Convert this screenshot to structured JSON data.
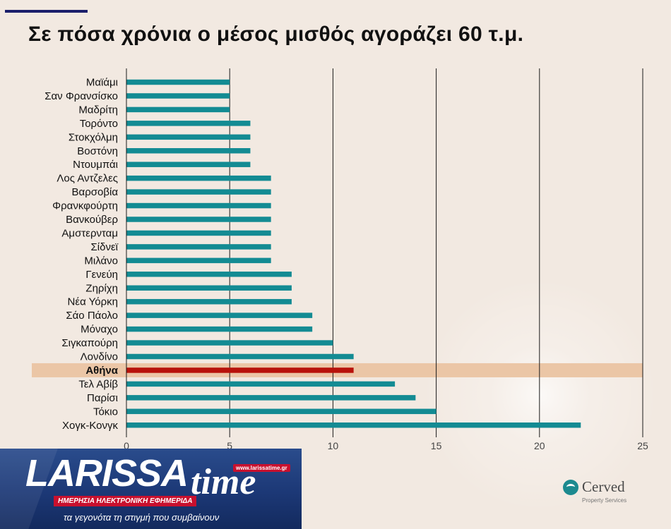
{
  "title": "Σε πόσα χρόνια ο μέσος μισθός αγοράζει 60 τ.μ.",
  "chart_data": {
    "type": "bar",
    "orientation": "horizontal",
    "title": "Σε πόσα χρόνια ο μέσος μισθός αγοράζει 60 τ.μ.",
    "categories": [
      "Μαϊάμι",
      "Σαν Φρανσίσκο",
      "Μαδρίτη",
      "Τορόντο",
      "Στοκχόλμη",
      "Βοστόνη",
      "Ντουμπάι",
      "Λος Αντζελες",
      "Βαρσοβία",
      "Φρανκφούρτη",
      "Βανκούβερ",
      "Αμστερνταμ",
      "Σίδνεϊ",
      "Μιλάνο",
      "Γενεύη",
      "Ζηρίχη",
      "Νέα Υόρκη",
      "Σάο Πάολο",
      "Μόναχο",
      "Σιγκαπούρη",
      "Λονδίνο",
      "Αθήνα",
      "Τελ Αβίβ",
      "Παρίσι",
      "Τόκιο",
      "Χογκ-Κονγκ"
    ],
    "values": [
      5,
      5,
      5,
      6,
      6,
      6,
      6,
      7,
      7,
      7,
      7,
      7,
      7,
      7,
      8,
      8,
      8,
      9,
      9,
      10,
      11,
      11,
      13,
      14,
      15,
      22
    ],
    "highlight": "Αθήνα",
    "xlim": [
      0,
      25
    ],
    "xticks": [
      "0",
      "5",
      "10",
      "15",
      "20",
      "25"
    ],
    "grid": "vertical",
    "colors": {
      "bar": "#138b93",
      "highlight_bar": "#b8120b",
      "highlight_band": "#ebc6a6",
      "gridline": "#1a1a1a"
    }
  },
  "logo": {
    "larissa": "LARISSA",
    "time": "time",
    "url": "www.larissatime.gr",
    "tagline": "ΗΜΕΡΗΣΙΑ ΗΛΕΚΤΡΟΝΙΚΗ ΕΦΗΜΕΡΙΔΑ",
    "slogan": "τα γεγονότα τη στιγμή που συμβαίνουν"
  },
  "source_logo": {
    "name": "Cerved",
    "sub": "Property Services"
  }
}
